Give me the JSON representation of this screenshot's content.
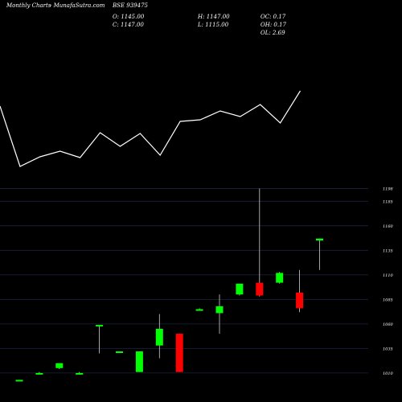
{
  "header": {
    "site": "Monthly Charts",
    "source": "- MunafaSutra.com",
    "symbol": "BSE 939475",
    "open": "O: 1145.00",
    "high": "H: 1147.00",
    "oc": "OC: 0.17",
    "close": "C: 1147.00",
    "low": "L: 1115.00",
    "oh": "OH: 0.17",
    "ol": "OL: 2.69"
  },
  "colors": {
    "background": "#000000",
    "up": "#00ff00",
    "down": "#ff0000",
    "line": "#ffffff",
    "grid": "#1c2340"
  },
  "chart_data": [
    {
      "type": "line",
      "title": "",
      "x": [
        1,
        2,
        3,
        4,
        5,
        6,
        7,
        8,
        9,
        10,
        11,
        12,
        13,
        14,
        15,
        16
      ],
      "values": [
        1108,
        1033,
        1045,
        1052,
        1044,
        1075,
        1058,
        1074,
        1047,
        1089,
        1091,
        1102,
        1095,
        1110,
        1087,
        1127
      ],
      "ylim": [
        1020,
        1140
      ]
    },
    {
      "type": "candlestick",
      "title": "",
      "y_ticks": [
        1010,
        1035,
        1060,
        1085,
        1110,
        1135,
        1160,
        1185,
        1198
      ],
      "ylim": [
        1005,
        1200
      ],
      "candles": [
        {
          "open": 1003,
          "high": 1003,
          "low": 1002,
          "close": 1003
        },
        {
          "open": 1010,
          "high": 1011,
          "low": 1009,
          "close": 1010
        },
        {
          "open": 1015,
          "high": 1020,
          "low": 1014,
          "close": 1020
        },
        {
          "open": 1010,
          "high": 1011,
          "low": 1009,
          "close": 1010
        },
        {
          "open": 1058,
          "high": 1059,
          "low": 1030,
          "close": 1059
        },
        {
          "open": 1032,
          "high": 1032,
          "low": 1032,
          "close": 1032
        },
        {
          "open": 1011,
          "high": 1032,
          "low": 1011,
          "close": 1032
        },
        {
          "open": 1038,
          "high": 1070,
          "low": 1025,
          "close": 1055
        },
        {
          "open": 1050,
          "high": 1050,
          "low": 1011,
          "close": 1011
        },
        {
          "open": 1075,
          "high": 1076,
          "low": 1074,
          "close": 1075
        },
        {
          "open": 1071,
          "high": 1090,
          "low": 1050,
          "close": 1078
        },
        {
          "open": 1090,
          "high": 1101,
          "low": 1089,
          "close": 1101
        },
        {
          "open": 1102,
          "high": 1198,
          "low": 1088,
          "close": 1089
        },
        {
          "open": 1102,
          "high": 1113,
          "low": 1101,
          "close": 1112
        },
        {
          "open": 1092,
          "high": 1115,
          "low": 1072,
          "close": 1076
        },
        {
          "open": 1145,
          "high": 1147,
          "low": 1115,
          "close": 1147
        }
      ]
    }
  ]
}
